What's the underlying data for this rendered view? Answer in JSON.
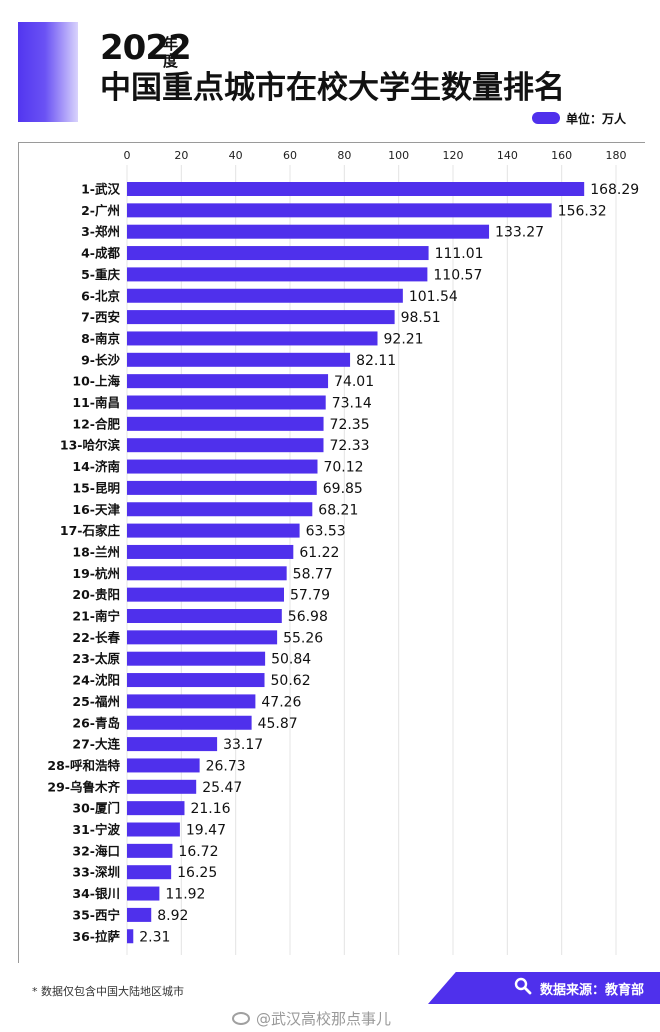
{
  "header": {
    "year": "2022",
    "year_suffix": "年度",
    "title": "中国重点城市在校大学生数量排名",
    "unit_label": "单位：万人"
  },
  "colors": {
    "bar": "#4f30ec",
    "accent": "#5236f0"
  },
  "chart_data": {
    "type": "bar",
    "orientation": "horizontal",
    "xlim": [
      0,
      180
    ],
    "ticks": [
      0,
      20,
      40,
      60,
      80,
      100,
      120,
      140,
      160,
      180
    ],
    "grid": true,
    "categories": [
      "1-武汉",
      "2-广州",
      "3-郑州",
      "4-成都",
      "5-重庆",
      "6-北京",
      "7-西安",
      "8-南京",
      "9-长沙",
      "10-上海",
      "11-南昌",
      "12-合肥",
      "13-哈尔滨",
      "14-济南",
      "15-昆明",
      "16-天津",
      "17-石家庄",
      "18-兰州",
      "19-杭州",
      "20-贵阳",
      "21-南宁",
      "22-长春",
      "23-太原",
      "24-沈阳",
      "25-福州",
      "26-青岛",
      "27-大连",
      "28-呼和浩特",
      "29-乌鲁木齐",
      "30-厦门",
      "31-宁波",
      "32-海口",
      "33-深圳",
      "34-银川",
      "35-西宁",
      "36-拉萨"
    ],
    "values": [
      168.29,
      156.32,
      133.27,
      111.01,
      110.57,
      101.54,
      98.51,
      92.21,
      82.11,
      74.01,
      73.14,
      72.35,
      72.33,
      70.12,
      69.85,
      68.21,
      63.53,
      61.22,
      58.77,
      57.79,
      56.98,
      55.26,
      50.84,
      50.62,
      47.26,
      45.87,
      33.17,
      26.73,
      25.47,
      21.16,
      19.47,
      16.72,
      16.25,
      11.92,
      8.92,
      2.31
    ],
    "value_labels": [
      "168.29",
      "156.32",
      "133.27",
      "111.01",
      "110.57",
      "101.54",
      "98.51",
      "92.21",
      "82.11",
      "74.01",
      "73.14",
      "72.35",
      "72.33",
      "70.12",
      "69.85",
      "68.21",
      "63.53",
      "61.22",
      "58.77",
      "57.79",
      "56.98",
      "55.26",
      "50.84",
      "50.62",
      "47.26",
      "45.87",
      "33.17",
      "26.73",
      "25.47",
      "21.16",
      "19.47",
      "16.72",
      "16.25",
      "11.92",
      "8.92",
      "2.31"
    ]
  },
  "footer": {
    "note": "* 数据仅包含中国大陆地区城市",
    "source": "数据来源：教育部",
    "watermark": "@武汉高校那点事儿"
  }
}
